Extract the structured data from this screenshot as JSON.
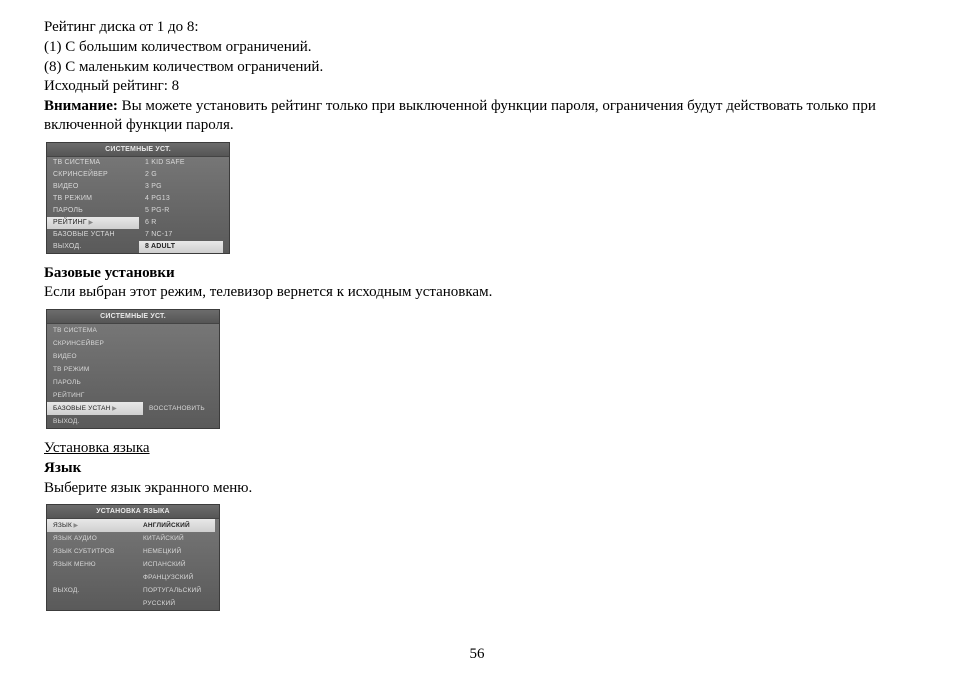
{
  "text": {
    "line1": "Рейтинг диска от 1 до 8:",
    "line2": "(1) С большим количеством ограничений.",
    "line3": "(8) С маленьким количеством ограничений.",
    "line4": "Исходный рейтинг: 8",
    "attention_label": "Внимание:",
    "attention_rest": " Вы можете установить рейтинг только при выключенной функции пароля, ограничения будут действовать только при включенной функции пароля.",
    "basic_heading": "Базовые установки",
    "basic_body": "Если выбран этот режим, телевизор вернется к исходным установкам.",
    "lang_underline": "Установка языка",
    "lang_heading": "Язык",
    "lang_body": "Выберите язык экранного меню.",
    "page_number": "56"
  },
  "osd1": {
    "title": "СИСТЕМНЫЕ УСТ.",
    "left": [
      "ТВ СИСТЕМА",
      "СКРИНСЕЙВЕР",
      "ВИДЕО",
      "ТВ РЕЖИМ",
      "ПАРОЛЬ",
      "РЕЙТИНГ",
      "БАЗОВЫЕ УСТАН",
      "ВЫХОД."
    ],
    "right": [
      "1  KID SAFE",
      "2  G",
      "3  PG",
      "4  PG13",
      "5  PG-R",
      "6  R",
      "7  NC-17",
      "8  ADULT"
    ],
    "left_selected_index": 5,
    "right_selected_index": 7
  },
  "osd2": {
    "title": "СИСТЕМНЫЕ УСТ.",
    "left": [
      "ТВ СИСТЕМА",
      "СКРИНСЕЙВЕР",
      "ВИДЕО",
      "ТВ РЕЖИМ",
      "ПАРОЛЬ",
      "РЕЙТИНГ",
      "БАЗОВЫЕ УСТАН",
      "ВЫХОД."
    ],
    "right_label": "ВОССТАНОВИТЬ",
    "left_selected_index": 6
  },
  "osd3": {
    "title": "УСТАНОВКА ЯЗЫКА",
    "left": [
      "ЯЗЫК",
      "ЯЗЫК АУДИО",
      "ЯЗЫК СУБТИТРОВ",
      "ЯЗЫК МЕНЮ",
      "",
      "ВЫХОД."
    ],
    "right": [
      "АНГЛИЙСКИЙ",
      "КИТАЙСКИЙ",
      "НЕМЕЦКИЙ",
      "ИСПАНСКИЙ",
      "ФРАНЦУЗСКИЙ",
      "ПОРТУГАЛЬСКИЙ",
      "РУССКИЙ"
    ],
    "left_selected_index": 0,
    "right_selected_index": 0
  }
}
